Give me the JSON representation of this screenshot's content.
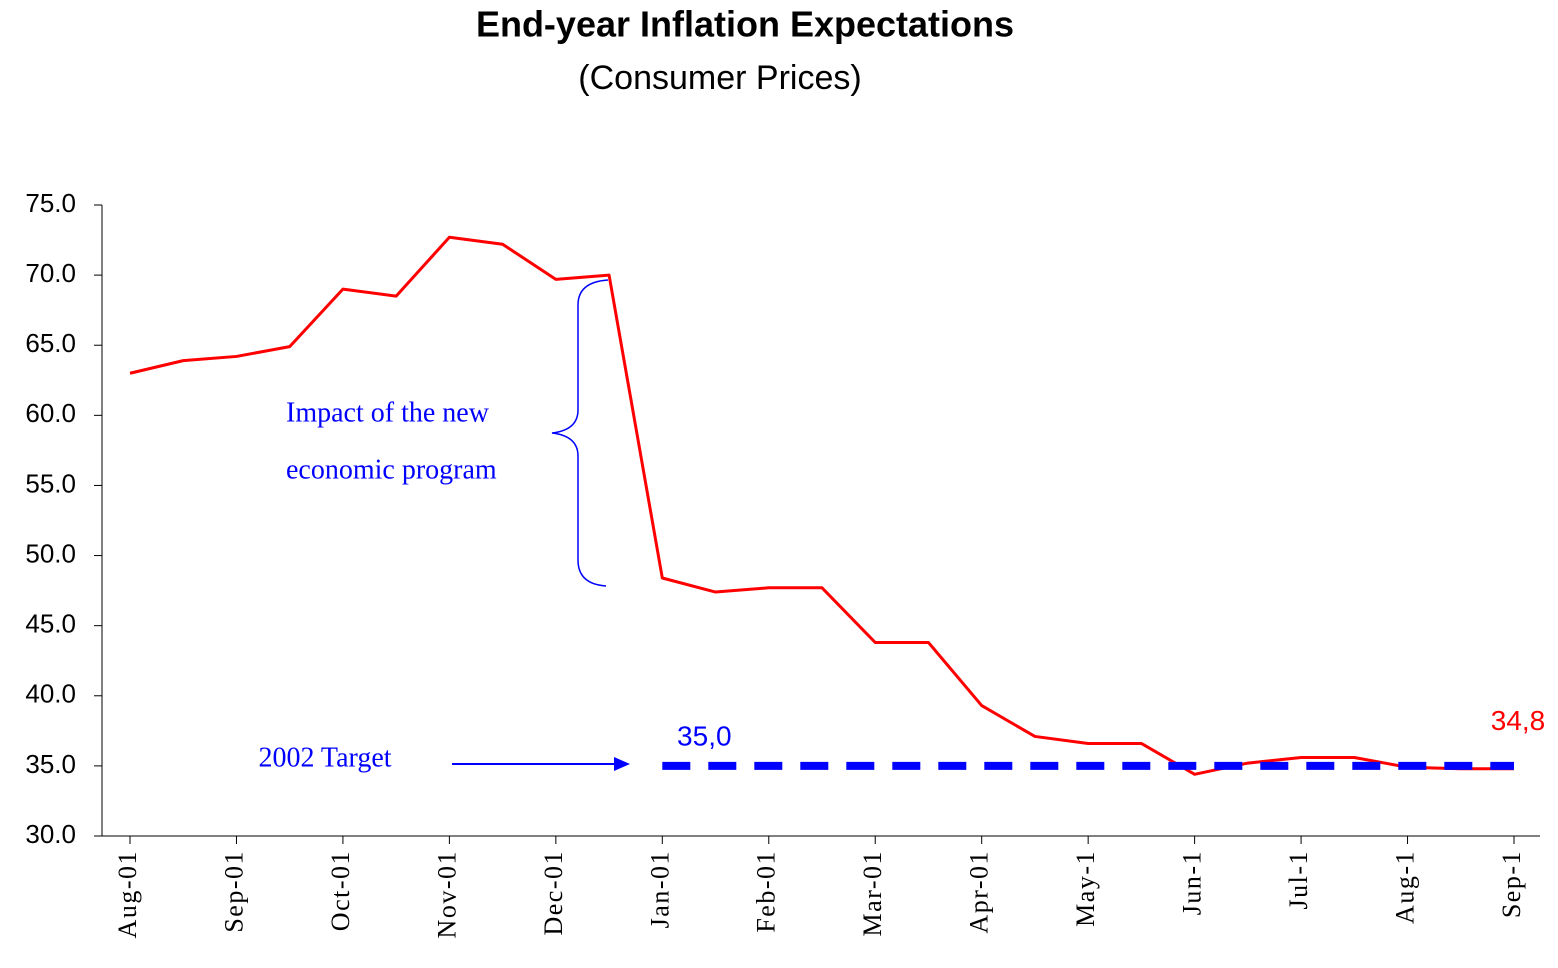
{
  "chart_data": {
    "type": "line",
    "title": "End-year Inflation Expectations",
    "subtitle": "(Consumer Prices)",
    "categories": [
      "Aug-01",
      null,
      "Sep-01",
      null,
      "Oct-01",
      null,
      "Nov-01",
      null,
      "Dec-01",
      null,
      "Jan-01",
      null,
      "Feb-01",
      null,
      "Mar-01",
      null,
      "Apr-01",
      null,
      "May-1",
      null,
      "Jun-1",
      null,
      "Jul-1",
      null,
      "Aug-1",
      null,
      "Sep-1"
    ],
    "series": [
      {
        "color": "#ff0000",
        "style": "solid",
        "values": [
          63.0,
          63.9,
          64.2,
          64.9,
          69.0,
          68.5,
          72.7,
          72.2,
          69.7,
          70.0,
          48.4,
          47.4,
          47.7,
          47.7,
          43.8,
          43.8,
          39.3,
          37.1,
          36.6,
          36.6,
          34.4,
          35.2,
          35.6,
          35.6,
          34.9,
          34.8,
          34.8
        ],
        "value_labels": [
          null,
          null,
          null,
          null,
          null,
          null,
          null,
          null,
          null,
          null,
          null,
          null,
          null,
          null,
          null,
          null,
          null,
          null,
          null,
          null,
          null,
          null,
          null,
          null,
          null,
          null,
          "34,8"
        ]
      },
      {
        "color": "#0000ff",
        "style": "dashed",
        "values": [
          null,
          null,
          null,
          null,
          null,
          null,
          null,
          null,
          null,
          null,
          35.0,
          35.0,
          35.0,
          35.0,
          35.0,
          35.0,
          35.0,
          35.0,
          35.0,
          35.0,
          35.0,
          35.0,
          35.0,
          35.0,
          35.0,
          35.0,
          35.0
        ],
        "value_labels": [
          null,
          null,
          null,
          null,
          null,
          null,
          null,
          null,
          null,
          null,
          "35,0",
          null,
          null,
          null,
          null,
          null,
          null,
          null,
          null,
          null,
          null,
          null,
          null,
          null,
          null,
          null,
          null
        ]
      }
    ],
    "ylim": [
      30,
      75
    ],
    "yticks": [
      {
        "value": 30,
        "label": "30.0"
      },
      {
        "value": 35,
        "label": "35.0"
      },
      {
        "value": 40,
        "label": "40.0"
      },
      {
        "value": 45,
        "label": "45.0"
      },
      {
        "value": 50,
        "label": "50.0"
      },
      {
        "value": 55,
        "label": "55.0"
      },
      {
        "value": 60,
        "label": "60.0"
      },
      {
        "value": 65,
        "label": "65.0"
      },
      {
        "value": 70,
        "label": "70.0"
      },
      {
        "value": 75,
        "label": "75.0"
      }
    ],
    "grid": false,
    "annotations": [
      "Impact of the new",
      "economic program",
      "2002 Target"
    ]
  }
}
